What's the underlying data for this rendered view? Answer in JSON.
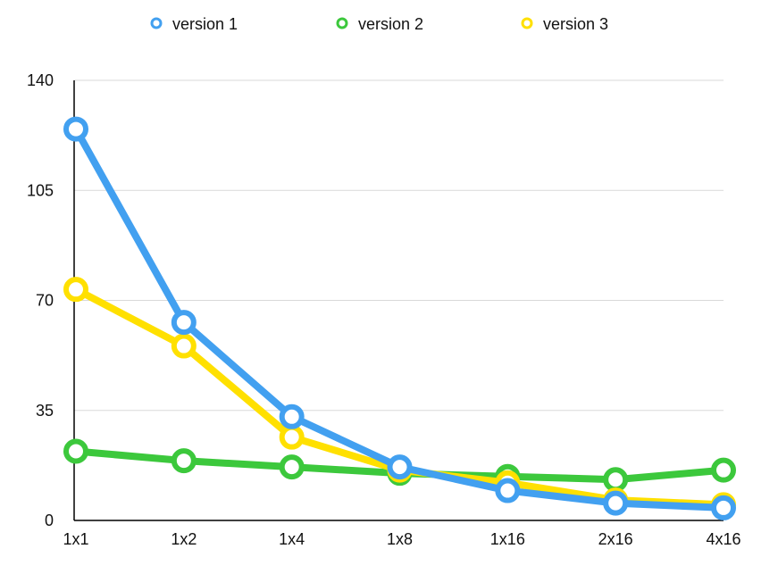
{
  "chart_data": {
    "type": "line",
    "categories": [
      "1x1",
      "1x2",
      "1x4",
      "1x8",
      "1x16",
      "2x16",
      "4x16"
    ],
    "ylim": [
      0,
      140
    ],
    "yticks": [
      "0",
      "35",
      "70",
      "105",
      "140"
    ],
    "grid": true,
    "legend": "top",
    "series": [
      {
        "name": "version 1",
        "color": "#42a0f0",
        "values": [
          124.5,
          63,
          33,
          17,
          9.5,
          5.5,
          4
        ]
      },
      {
        "name": "version 2",
        "color": "#3cc83c",
        "values": [
          22,
          19,
          17,
          15,
          14,
          13,
          16
        ]
      },
      {
        "name": "version 3",
        "color": "#ffe000",
        "values": [
          73.5,
          55.5,
          26.5,
          16,
          12,
          6.5,
          5
        ]
      }
    ]
  }
}
